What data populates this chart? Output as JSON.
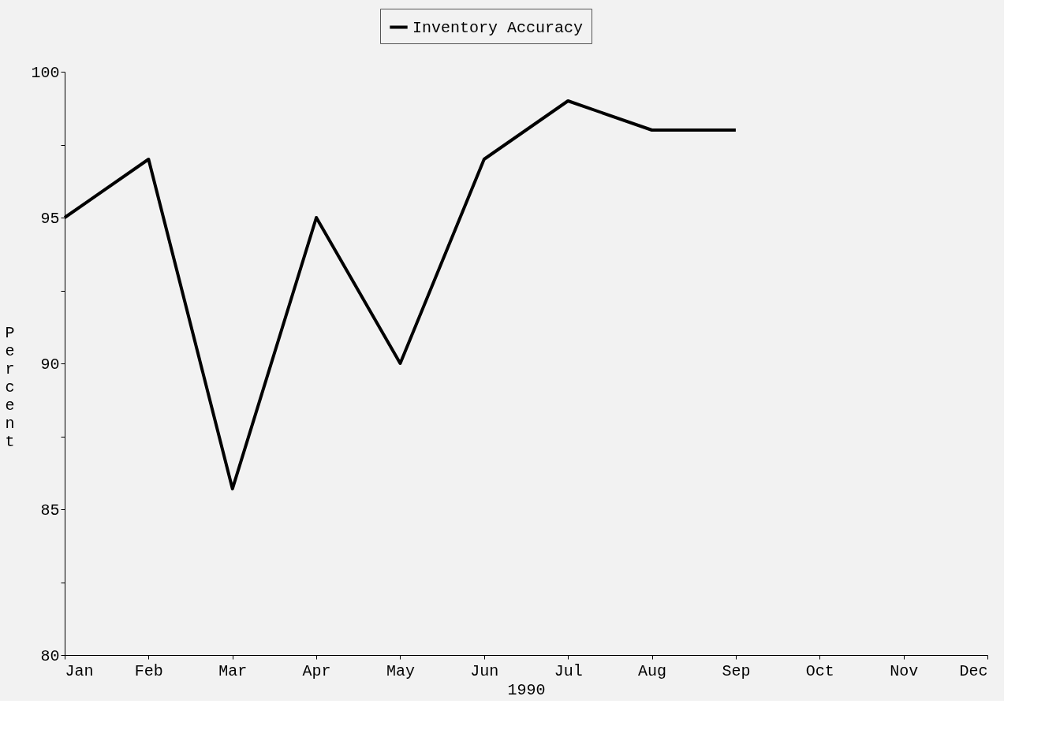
{
  "chart_data": {
    "type": "line",
    "xlabel": "1990",
    "ylabel": "Percent",
    "categories": [
      "Jan",
      "Feb",
      "Mar",
      "Apr",
      "May",
      "Jun",
      "Jul",
      "Aug",
      "Sep",
      "Oct",
      "Nov",
      "Dec"
    ],
    "series": [
      {
        "name": "Inventory Accuracy",
        "color": "#000000",
        "values": [
          95,
          97,
          85.7,
          95,
          90,
          97,
          99,
          98,
          98,
          null,
          null,
          null
        ]
      }
    ],
    "ylim": [
      80,
      100
    ],
    "yticks": [
      80,
      {
        "value": 82.5,
        "label": null
      },
      85,
      {
        "value": 87.5,
        "label": null
      },
      90,
      {
        "value": 92.5,
        "label": null
      },
      95,
      {
        "value": 97.5,
        "label": null
      },
      100
    ],
    "grid": false,
    "legend": "top",
    "marker": "none",
    "line_style": "solid"
  }
}
